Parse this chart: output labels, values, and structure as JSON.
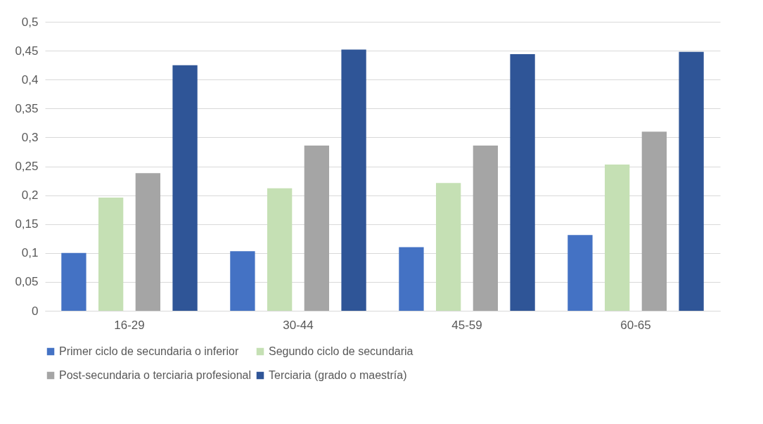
{
  "chart_data": {
    "type": "bar",
    "categories": [
      "16-29",
      "30-44",
      "45-59",
      "60-65"
    ],
    "series": [
      {
        "name": "Primer ciclo de secundaria o inferior",
        "color": "#4472c4",
        "values": [
          0.1,
          0.103,
          0.11,
          0.131
        ]
      },
      {
        "name": "Segundo ciclo de secundaria",
        "color": "#c5e0b4",
        "values": [
          0.196,
          0.212,
          0.221,
          0.253
        ]
      },
      {
        "name": "Post-secundaria o terciaria profesional",
        "color": "#a5a5a5",
        "values": [
          0.238,
          0.286,
          0.286,
          0.31
        ]
      },
      {
        "name": "Terciaria (grado o maestría)",
        "color": "#2f5597",
        "values": [
          0.425,
          0.452,
          0.444,
          0.448
        ]
      }
    ],
    "ylim": [
      0,
      0.5
    ],
    "yticks": [
      0,
      {
        "value": 0.05,
        "label": "0,05"
      },
      {
        "value": 0.1,
        "label": "0,1"
      },
      {
        "value": 0.15,
        "label": "0,15"
      },
      {
        "value": 0.2,
        "label": "0,2"
      },
      {
        "value": 0.25,
        "label": "0,25"
      },
      {
        "value": 0.3,
        "label": "0,3"
      },
      {
        "value": 0.35,
        "label": "0,35"
      },
      {
        "value": 0.4,
        "label": "0,4"
      },
      {
        "value": 0.45,
        "label": "0,45"
      },
      {
        "value": 0.5,
        "label": "0,5"
      }
    ],
    "grid": "y",
    "legend": "bottom"
  }
}
